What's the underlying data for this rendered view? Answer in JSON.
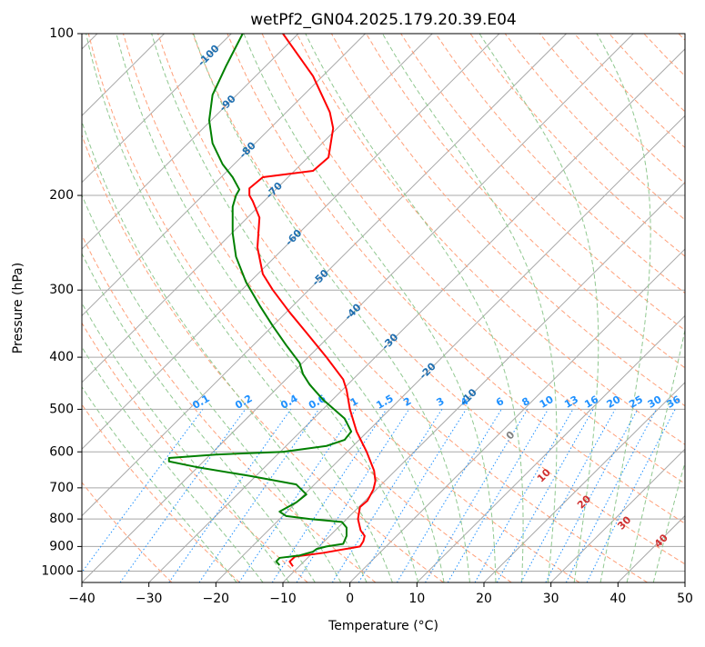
{
  "colors": {
    "temperature": "#ff0000",
    "dewpoint": "#008000",
    "isotherm": "#a8a8a8",
    "isobar": "#a8a8a8",
    "dry_adiabat": "#ffa07a",
    "moist_adiabat": "#90c890",
    "mixing_ratio": "#1e90ff",
    "isotherm_label": "#1f6fb0",
    "cape_label": "#d03030"
  },
  "chart_data": {
    "type": "line",
    "title": "wetPf2_GN04.2025.179.20.39.E04",
    "xlabel": "Temperature (°C)",
    "ylabel": "Pressure (hPa)",
    "xlim": [
      -40,
      50
    ],
    "ylim": [
      1050,
      100
    ],
    "yscale": "log",
    "grid": true,
    "x_ticks": [
      -40,
      -30,
      -20,
      -10,
      0,
      10,
      20,
      30,
      40,
      50
    ],
    "y_ticks": [
      100,
      200,
      300,
      400,
      500,
      600,
      700,
      800,
      900,
      1000
    ],
    "series": [
      {
        "key": "temperature",
        "color": "#ff0000",
        "points": [
          [
            -8.5,
            980
          ],
          [
            -9.0,
            960
          ],
          [
            -8.2,
            940
          ],
          [
            -4.0,
            925
          ],
          [
            1.5,
            900
          ],
          [
            2.0,
            880
          ],
          [
            2.2,
            860
          ],
          [
            1.6,
            840
          ],
          [
            1.2,
            800
          ],
          [
            1.5,
            760
          ],
          [
            2.6,
            740
          ],
          [
            3.5,
            705
          ],
          [
            3.8,
            680
          ],
          [
            3.6,
            650
          ],
          [
            2.5,
            600
          ],
          [
            1.0,
            550
          ],
          [
            0.0,
            500
          ],
          [
            -0.5,
            460
          ],
          [
            -1.0,
            440
          ],
          [
            -3.5,
            400
          ],
          [
            -6.5,
            360
          ],
          [
            -9.0,
            330
          ],
          [
            -11.5,
            300
          ],
          [
            -13.0,
            280
          ],
          [
            -13.8,
            250
          ],
          [
            -13.5,
            220
          ],
          [
            -14.5,
            205
          ],
          [
            -15.0,
            200
          ],
          [
            -15.0,
            194
          ],
          [
            -13.0,
            185
          ],
          [
            -5.5,
            180
          ],
          [
            -3.2,
            170
          ],
          [
            -2.5,
            150
          ],
          [
            -3.0,
            140
          ],
          [
            -5.5,
            120
          ],
          [
            -10.0,
            100
          ]
        ]
      },
      {
        "key": "dewpoint",
        "color": "#008000",
        "points": [
          [
            -10.5,
            975
          ],
          [
            -11.0,
            960
          ],
          [
            -10.5,
            945
          ],
          [
            -7.5,
            935
          ],
          [
            -5.5,
            920
          ],
          [
            -5.0,
            910
          ],
          [
            -3.5,
            900
          ],
          [
            -1.0,
            890
          ],
          [
            -0.5,
            860
          ],
          [
            -0.5,
            830
          ],
          [
            -1.2,
            810
          ],
          [
            -6.0,
            800
          ],
          [
            -9.5,
            790
          ],
          [
            -10.5,
            775
          ],
          [
            -8.0,
            745
          ],
          [
            -6.5,
            720
          ],
          [
            -8.0,
            690
          ],
          [
            -15.0,
            665
          ],
          [
            -23.0,
            640
          ],
          [
            -27.0,
            625
          ],
          [
            -27.0,
            616
          ],
          [
            -20.0,
            607
          ],
          [
            -10.0,
            600
          ],
          [
            -3.5,
            585
          ],
          [
            -0.8,
            570
          ],
          [
            0.2,
            550
          ],
          [
            -0.8,
            520
          ],
          [
            -4.0,
            480
          ],
          [
            -6.0,
            450
          ],
          [
            -7.0,
            430
          ],
          [
            -7.5,
            410
          ],
          [
            -9.5,
            380
          ],
          [
            -11.5,
            350
          ],
          [
            -13.5,
            320
          ],
          [
            -15.5,
            290
          ],
          [
            -17.0,
            260
          ],
          [
            -17.5,
            235
          ],
          [
            -17.5,
            210
          ],
          [
            -17.0,
            200
          ],
          [
            -16.5,
            195
          ],
          [
            -17.5,
            185
          ],
          [
            -19.0,
            175
          ],
          [
            -20.5,
            160
          ],
          [
            -21.0,
            145
          ],
          [
            -20.5,
            130
          ],
          [
            -18.5,
            115
          ],
          [
            -16.0,
            100
          ]
        ]
      }
    ],
    "isotherm_labels": [
      "-100",
      "-90",
      "-80",
      "-70",
      "-60",
      "-50",
      "-40",
      "-30",
      "-20",
      "-10"
    ],
    "mixing_ratio_labels": [
      "0.1",
      "0.2",
      "0.4",
      "0.6",
      "1",
      "1.5",
      "2",
      "3",
      "4",
      "6",
      "8",
      "10",
      "13",
      "16",
      "20",
      "25",
      "30",
      "36"
    ],
    "moist_adiabat_labels": [
      "0",
      "10",
      "20",
      "30",
      "40"
    ]
  }
}
